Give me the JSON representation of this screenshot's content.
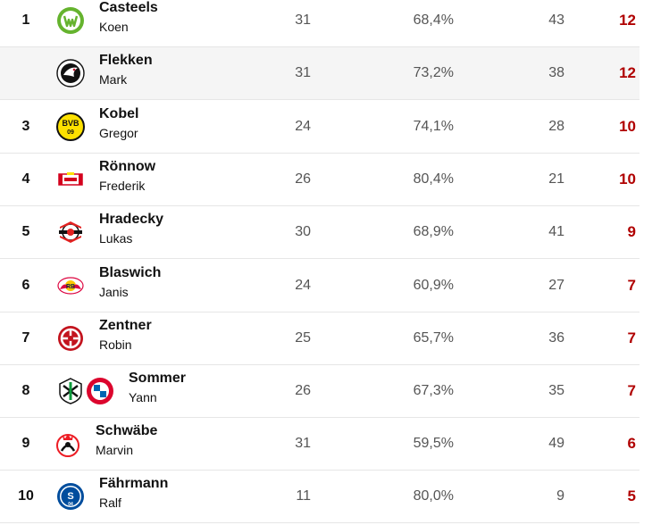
{
  "colors": {
    "accent_red": "#b00000",
    "row_alt": "#f5f5f5",
    "divider": "#e6e6e6"
  },
  "rows": [
    {
      "rank": "1",
      "last": "Casteels",
      "first": "Koen",
      "games": "31",
      "pct": "68,4%",
      "conceded": "43",
      "clean": "12",
      "clubs": [
        "wolfsburg-crest-icon"
      ]
    },
    {
      "rank": "",
      "last": "Flekken",
      "first": "Mark",
      "games": "31",
      "pct": "73,2%",
      "conceded": "38",
      "clean": "12",
      "clubs": [
        "freiburg-crest-icon"
      ]
    },
    {
      "rank": "3",
      "last": "Kobel",
      "first": "Gregor",
      "games": "24",
      "pct": "74,1%",
      "conceded": "28",
      "clean": "10",
      "clubs": [
        "dortmund-crest-icon"
      ]
    },
    {
      "rank": "4",
      "last": "Rönnow",
      "first": "Frederik",
      "games": "26",
      "pct": "80,4%",
      "conceded": "21",
      "clean": "10",
      "clubs": [
        "union-berlin-crest-icon"
      ]
    },
    {
      "rank": "5",
      "last": "Hradecky",
      "first": "Lukas",
      "games": "30",
      "pct": "68,9%",
      "conceded": "41",
      "clean": "9",
      "clubs": [
        "leverkusen-crest-icon"
      ]
    },
    {
      "rank": "6",
      "last": "Blaswich",
      "first": "Janis",
      "games": "24",
      "pct": "60,9%",
      "conceded": "27",
      "clean": "7",
      "clubs": [
        "leipzig-crest-icon"
      ]
    },
    {
      "rank": "7",
      "last": "Zentner",
      "first": "Robin",
      "games": "25",
      "pct": "65,7%",
      "conceded": "36",
      "clean": "7",
      "clubs": [
        "mainz-crest-icon"
      ]
    },
    {
      "rank": "8",
      "last": "Sommer",
      "first": "Yann",
      "games": "26",
      "pct": "67,3%",
      "conceded": "35",
      "clean": "7",
      "clubs": [
        "gladbach-crest-icon",
        "bayern-crest-icon"
      ]
    },
    {
      "rank": "9",
      "last": "Schwäbe",
      "first": "Marvin",
      "games": "31",
      "pct": "59,5%",
      "conceded": "49",
      "clean": "6",
      "clubs": [
        "koeln-crest-icon"
      ]
    },
    {
      "rank": "10",
      "last": "Fährmann",
      "first": "Ralf",
      "games": "11",
      "pct": "80,0%",
      "conceded": "9",
      "clean": "5",
      "clubs": [
        "schalke-crest-icon"
      ]
    }
  ]
}
